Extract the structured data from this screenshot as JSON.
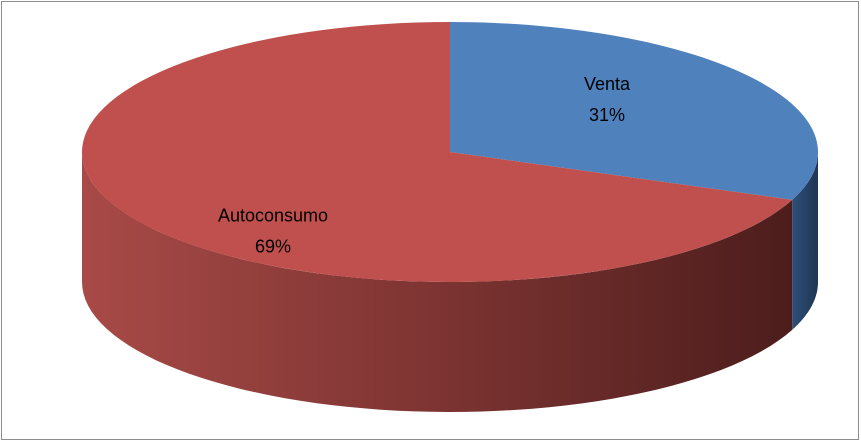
{
  "chart_data": {
    "type": "pie",
    "categories": [
      "Venta",
      "Autoconsumo"
    ],
    "values": [
      31,
      69
    ],
    "value_labels": [
      "31%",
      "69%"
    ],
    "colors": [
      "#4f81bd",
      "#c0504d"
    ]
  }
}
